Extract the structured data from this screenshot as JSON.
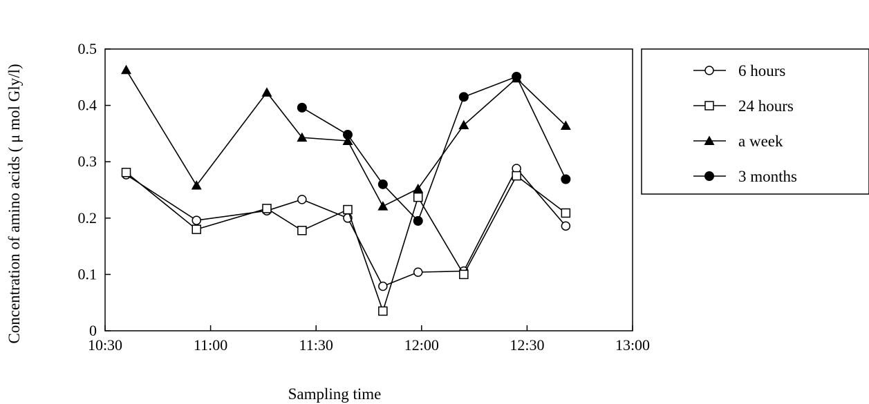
{
  "chart_data": {
    "type": "line",
    "title": "",
    "xlabel": "Sampling time",
    "ylabel": "Concentration of amino acids ( μ mol Gly/l)",
    "x_ticks": [
      "10:30",
      "11:00",
      "11:30",
      "12:00",
      "12:30",
      "13:00"
    ],
    "y_ticks": [
      "0",
      "0.1",
      "0.2",
      "0.3",
      "0.4",
      "0.5"
    ],
    "xlim": [
      "10:30",
      "13:00"
    ],
    "ylim": [
      0,
      0.5
    ],
    "grid": false,
    "legend_position": "right",
    "series": [
      {
        "name": "6 hours",
        "marker": "open-circle",
        "x": [
          "10:36",
          "10:56",
          "11:16",
          "11:26",
          "11:39",
          "11:49",
          "11:59",
          "12:12",
          "12:27",
          "12:41"
        ],
        "y": [
          0.277,
          0.196,
          0.213,
          0.233,
          0.2,
          0.079,
          0.104,
          0.106,
          0.288,
          0.186
        ]
      },
      {
        "name": "24 hours",
        "marker": "open-square",
        "x": [
          "10:36",
          "10:56",
          "11:16",
          "11:26",
          "11:39",
          "11:49",
          "11:59",
          "12:12",
          "12:27",
          "12:41"
        ],
        "y": [
          0.281,
          0.18,
          0.217,
          0.178,
          0.215,
          0.035,
          0.237,
          0.1,
          0.275,
          0.209
        ]
      },
      {
        "name": "a week",
        "marker": "filled-triangle",
        "x": [
          "10:36",
          "10:56",
          "11:16",
          "11:26",
          "11:39",
          "11:49",
          "11:59",
          "12:12",
          "12:27",
          "12:41"
        ],
        "y": [
          0.463,
          0.258,
          0.423,
          0.343,
          0.337,
          0.221,
          0.252,
          0.365,
          0.448,
          0.364
        ]
      },
      {
        "name": "3 months",
        "marker": "filled-circle",
        "x": [
          "11:26",
          "11:39",
          "11:49",
          "11:59",
          "12:12",
          "12:27",
          "12:41"
        ],
        "y": [
          0.396,
          0.348,
          0.26,
          0.195,
          0.415,
          0.451,
          0.269
        ]
      }
    ]
  }
}
